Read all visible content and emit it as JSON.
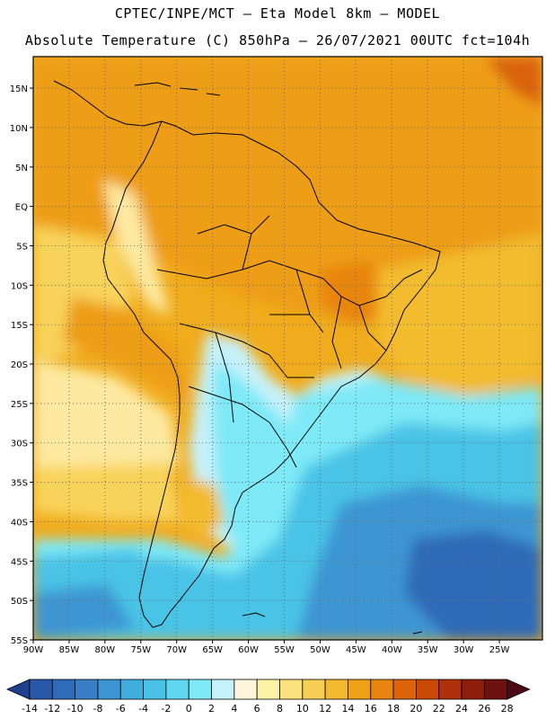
{
  "title_line1": "CPTEC/INPE/MCT –  Eta Model 8km – MODEL",
  "title_line2": "Absolute Temperature (C) 850hPa – 26/07/2021 00UTC fct=104h",
  "lat_labels": [
    {
      "text": "15N",
      "lat": 15
    },
    {
      "text": "10N",
      "lat": 10
    },
    {
      "text": "5N",
      "lat": 5
    },
    {
      "text": "EQ",
      "lat": 0
    },
    {
      "text": "5S",
      "lat": -5
    },
    {
      "text": "10S",
      "lat": -10
    },
    {
      "text": "15S",
      "lat": -15
    },
    {
      "text": "20S",
      "lat": -20
    },
    {
      "text": "25S",
      "lat": -25
    },
    {
      "text": "30S",
      "lat": -30
    },
    {
      "text": "35S",
      "lat": -35
    },
    {
      "text": "40S",
      "lat": -40
    },
    {
      "text": "45S",
      "lat": -45
    },
    {
      "text": "50S",
      "lat": -50
    },
    {
      "text": "55S",
      "lat": -55
    }
  ],
  "lon_labels": [
    {
      "text": "90W",
      "lon": -90
    },
    {
      "text": "85W",
      "lon": -85
    },
    {
      "text": "80W",
      "lon": -80
    },
    {
      "text": "75W",
      "lon": -75
    },
    {
      "text": "70W",
      "lon": -70
    },
    {
      "text": "65W",
      "lon": -65
    },
    {
      "text": "60W",
      "lon": -60
    },
    {
      "text": "55W",
      "lon": -55
    },
    {
      "text": "50W",
      "lon": -50
    },
    {
      "text": "45W",
      "lon": -45
    },
    {
      "text": "40W",
      "lon": -40
    },
    {
      "text": "35W",
      "lon": -35
    },
    {
      "text": "30W",
      "lon": -30
    },
    {
      "text": "25W",
      "lon": -25
    }
  ],
  "colorbar": {
    "labels": [
      "-14",
      "-12",
      "-10",
      "-8",
      "-6",
      "-4",
      "-2",
      "0",
      "2",
      "4",
      "6",
      "8",
      "10",
      "12",
      "14",
      "16",
      "18",
      "20",
      "22",
      "24",
      "26",
      "28"
    ],
    "colors": [
      "#1f3f8f",
      "#2a58a8",
      "#2e6bb8",
      "#3a7fc6",
      "#3c95d2",
      "#40aedc",
      "#48c3e6",
      "#5fd6ef",
      "#7ee9f7",
      "#c6f2fb",
      "#fdf6dd",
      "#fdf3a6",
      "#fbe27c",
      "#f7cf55",
      "#f3b92e",
      "#efa116",
      "#e8850f",
      "#dd6308",
      "#c94806",
      "#ad300a",
      "#8f1d0c",
      "#6c1010",
      "#4d0a14"
    ]
  },
  "field_colors": {
    "hot": "#d9620a",
    "warm_orange": "#ee9d16",
    "orange": "#f0ac1c",
    "yellow_orange": "#f3bb2e",
    "yellow": "#f8d35a",
    "light_yellow": "#fde9a0",
    "cream": "#fdf6dd",
    "pale_cyan": "#c6f2fb",
    "cyan": "#7ee9f7",
    "sky": "#48c3e6",
    "blue": "#3c95d2",
    "deep_blue": "#2e6bb8"
  }
}
